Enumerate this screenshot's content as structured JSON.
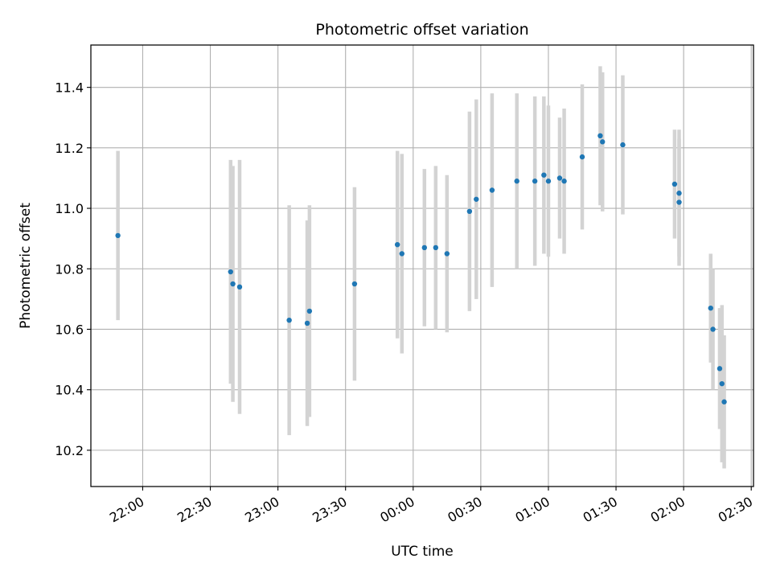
{
  "chart_data": {
    "type": "scatter",
    "title": "Photometric offset variation",
    "xlabel": "UTC time",
    "ylabel": "Photometric offset",
    "x_axis": "time",
    "xlim": [
      "21:37",
      "02:31"
    ],
    "ylim": [
      10.08,
      11.54
    ],
    "x_ticks": [
      "22:00",
      "22:30",
      "23:00",
      "23:30",
      "00:00",
      "00:30",
      "01:00",
      "01:30",
      "02:00",
      "02:30"
    ],
    "y_ticks": [
      "10.2",
      "10.4",
      "10.6",
      "10.8",
      "11.0",
      "11.2",
      "11.4"
    ],
    "grid": true,
    "colors": {
      "point": "#1f77b4",
      "errorbar": "#d3d3d3",
      "grid": "#b0b0b0",
      "axes": "#000000"
    },
    "points": [
      {
        "t": "21:49",
        "y": 10.91,
        "err": 0.28
      },
      {
        "t": "22:39",
        "y": 10.79,
        "err": 0.37
      },
      {
        "t": "22:40",
        "y": 10.75,
        "err": 0.39
      },
      {
        "t": "22:43",
        "y": 10.74,
        "err": 0.42
      },
      {
        "t": "23:05",
        "y": 10.63,
        "err": 0.38
      },
      {
        "t": "23:13",
        "y": 10.62,
        "err": 0.34
      },
      {
        "t": "23:14",
        "y": 10.66,
        "err": 0.35
      },
      {
        "t": "23:34",
        "y": 10.75,
        "err": 0.32
      },
      {
        "t": "23:53",
        "y": 10.88,
        "err": 0.31
      },
      {
        "t": "23:55",
        "y": 10.85,
        "err": 0.33
      },
      {
        "t": "00:05",
        "y": 10.87,
        "err": 0.26
      },
      {
        "t": "00:10",
        "y": 10.87,
        "err": 0.27
      },
      {
        "t": "00:15",
        "y": 10.85,
        "err": 0.26
      },
      {
        "t": "00:25",
        "y": 10.99,
        "err": 0.33
      },
      {
        "t": "00:28",
        "y": 11.03,
        "err": 0.33
      },
      {
        "t": "00:35",
        "y": 11.06,
        "err": 0.32
      },
      {
        "t": "00:46",
        "y": 11.09,
        "err": 0.29
      },
      {
        "t": "00:54",
        "y": 11.09,
        "err": 0.28
      },
      {
        "t": "00:58",
        "y": 11.11,
        "err": 0.26
      },
      {
        "t": "01:00",
        "y": 11.09,
        "err": 0.25
      },
      {
        "t": "01:05",
        "y": 11.1,
        "err": 0.2
      },
      {
        "t": "01:07",
        "y": 11.09,
        "err": 0.24
      },
      {
        "t": "01:15",
        "y": 11.17,
        "err": 0.24
      },
      {
        "t": "01:23",
        "y": 11.24,
        "err": 0.23
      },
      {
        "t": "01:24",
        "y": 11.22,
        "err": 0.23
      },
      {
        "t": "01:33",
        "y": 11.21,
        "err": 0.23
      },
      {
        "t": "01:56",
        "y": 11.08,
        "err": 0.18
      },
      {
        "t": "01:58",
        "y": 11.02,
        "err": 0.21
      },
      {
        "t": "01:58",
        "y": 11.05,
        "err": 0.21
      },
      {
        "t": "02:12",
        "y": 10.67,
        "err": 0.18
      },
      {
        "t": "02:13",
        "y": 10.6,
        "err": 0.2
      },
      {
        "t": "02:16",
        "y": 10.47,
        "err": 0.2
      },
      {
        "t": "02:17",
        "y": 10.42,
        "err": 0.26
      },
      {
        "t": "02:18",
        "y": 10.36,
        "err": 0.22
      }
    ]
  }
}
